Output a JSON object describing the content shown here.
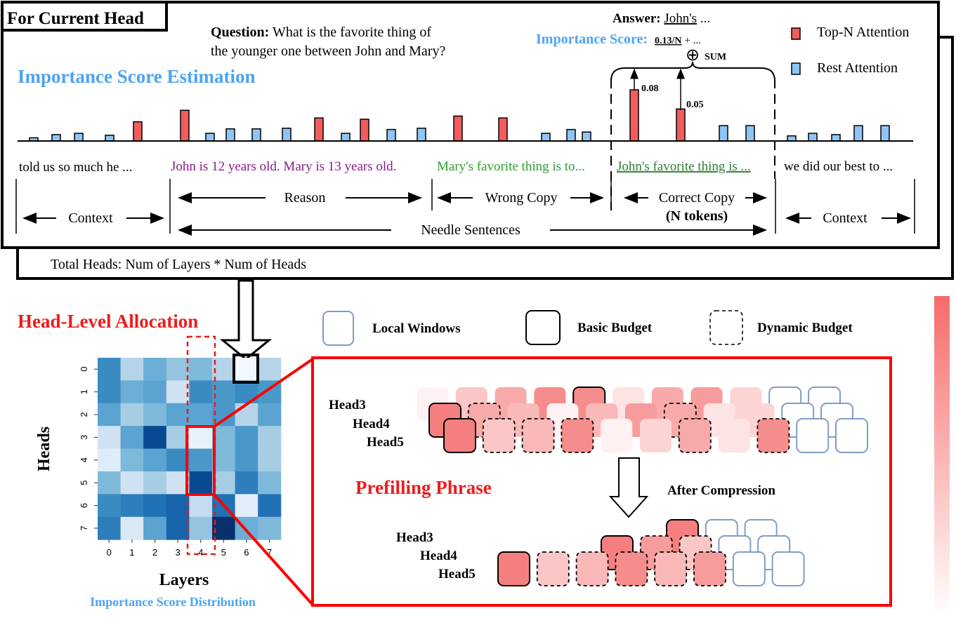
{
  "top_panel": {
    "tag": "For Current Head",
    "question_label": "Question:",
    "question_line1": "What is the favorite thing of",
    "question_line2": "the younger one between John and Mary?",
    "section_title": "Importance Score Estimation",
    "answer_label": "Answer:",
    "answer_token": "John's",
    "answer_rest": "...",
    "score_label": "Importance Score:",
    "score_value": "0.13/N",
    "score_rest": "+ ...",
    "sum_symbol": "⊕",
    "sum_label": "SUM",
    "value_labels": [
      "0.08",
      "0.05"
    ],
    "legend": [
      {
        "label": "Top-N Attention",
        "color": "#f25c5c"
      },
      {
        "label": "Rest Attention",
        "color": "#8ec5f5"
      }
    ],
    "attention_bars": [
      {
        "value": 0.005,
        "type": "rest"
      },
      {
        "value": 0.01,
        "type": "rest"
      },
      {
        "value": 0.012,
        "type": "rest"
      },
      {
        "value": 0.009,
        "type": "rest"
      },
      {
        "value": 0.03,
        "type": "top"
      },
      {
        "value": 0.048,
        "type": "top"
      },
      {
        "value": 0.012,
        "type": "rest"
      },
      {
        "value": 0.019,
        "type": "rest"
      },
      {
        "value": 0.019,
        "type": "rest"
      },
      {
        "value": 0.02,
        "type": "rest"
      },
      {
        "value": 0.036,
        "type": "top"
      },
      {
        "value": 0.012,
        "type": "rest"
      },
      {
        "value": 0.034,
        "type": "top"
      },
      {
        "value": 0.018,
        "type": "rest"
      },
      {
        "value": 0.02,
        "type": "rest"
      },
      {
        "value": 0.039,
        "type": "top"
      },
      {
        "value": 0.036,
        "type": "top"
      },
      {
        "value": 0.012,
        "type": "rest"
      },
      {
        "value": 0.018,
        "type": "rest"
      },
      {
        "value": 0.014,
        "type": "rest"
      },
      {
        "value": 0.08,
        "type": "top"
      },
      {
        "value": 0.05,
        "type": "top"
      },
      {
        "value": 0.024,
        "type": "rest"
      },
      {
        "value": 0.024,
        "type": "rest"
      },
      {
        "value": 0.008,
        "type": "rest"
      },
      {
        "value": 0.012,
        "type": "rest"
      },
      {
        "value": 0.01,
        "type": "rest"
      },
      {
        "value": 0.024,
        "type": "rest"
      },
      {
        "value": 0.024,
        "type": "rest"
      }
    ],
    "tokens": {
      "context_left": "told  us  so  much  he ...",
      "reason": "John is 12 years old. Mary is 13 years old.",
      "wrong_copy": "Mary's favorite thing is to...",
      "correct_copy": "John's favorite thing is ...",
      "context_right": "we did our best to ..."
    },
    "token_colors": {
      "reason": "#8b1a8b",
      "wrong_copy": "#2ca02c",
      "correct_copy": "#2e7d32"
    },
    "spans": {
      "context_left": "Context",
      "reason": "Reason",
      "wrong_copy": "Wrong  Copy",
      "correct_copy": "Correct Copy",
      "n_tokens": "(N tokens)",
      "needle": "Needle Sentences",
      "context_right": "Context"
    },
    "total_heads": "Total Heads: Num of Layers * Num of Heads"
  },
  "allocation": {
    "title": "Head-Level Allocation",
    "legend": {
      "local_windows": "Local Windows",
      "basic_budget": "Basic Budget",
      "dynamic_budget": "Dynamic Budget"
    },
    "heatmap": {
      "ylabel": "Heads",
      "xlabel": "Layers",
      "caption": "Importance Score Distribution",
      "row_labels": [
        "0",
        "1",
        "2",
        "3",
        "4",
        "5",
        "6",
        "7"
      ],
      "col_labels": [
        "0",
        "1",
        "2",
        "3",
        "4",
        "5",
        "6",
        "7"
      ],
      "colormap": "Blues",
      "values": [
        [
          0.65,
          0.3,
          0.5,
          0.4,
          0.45,
          0.3,
          0.02,
          0.3
        ],
        [
          0.65,
          0.5,
          0.55,
          0.2,
          0.65,
          0.6,
          0.65,
          0.6
        ],
        [
          0.55,
          0.35,
          0.45,
          0.55,
          0.55,
          0.6,
          0.3,
          0.55
        ],
        [
          0.2,
          0.55,
          0.9,
          0.35,
          0.08,
          0.45,
          0.6,
          0.35
        ],
        [
          0.12,
          0.45,
          0.55,
          0.65,
          0.6,
          0.45,
          0.6,
          0.35
        ],
        [
          0.45,
          0.2,
          0.35,
          0.2,
          0.9,
          0.35,
          0.7,
          0.45
        ],
        [
          0.65,
          0.7,
          0.75,
          0.8,
          0.25,
          0.75,
          0.1,
          0.75
        ],
        [
          0.7,
          0.15,
          0.55,
          0.8,
          0.4,
          1.0,
          0.5,
          0.45
        ]
      ]
    },
    "prefilling": {
      "title": "Prefilling Phrase",
      "after_label": "After  Compression",
      "head_labels": [
        "Head3",
        "Head4",
        "Head5"
      ],
      "before_rows": [
        [
          {
            "l": 0.1,
            "k": "none"
          },
          {
            "l": 0.4,
            "k": "none"
          },
          {
            "l": 0.6,
            "k": "none"
          },
          {
            "l": 0.8,
            "k": "none"
          },
          {
            "l": 0.8,
            "k": "basic"
          },
          {
            "l": 0.2,
            "k": "none"
          },
          {
            "l": 0.6,
            "k": "none"
          },
          {
            "l": 0.7,
            "k": "none"
          },
          {
            "l": 0.3,
            "k": "none"
          },
          {
            "l": 0,
            "k": "local"
          },
          {
            "l": 0,
            "k": "local"
          }
        ],
        [
          {
            "l": 0.9,
            "k": "basic"
          },
          {
            "l": 0.6,
            "k": "dynamic"
          },
          {
            "l": 0.5,
            "k": "none"
          },
          {
            "l": 0.1,
            "k": "none"
          },
          {
            "l": 0.5,
            "k": "none"
          },
          {
            "l": 0.7,
            "k": "none"
          },
          {
            "l": 0.6,
            "k": "dynamic"
          },
          {
            "l": 0.2,
            "k": "none"
          },
          {
            "l": 0.3,
            "k": "none"
          },
          {
            "l": 0,
            "k": "local"
          },
          {
            "l": 0,
            "k": "local"
          }
        ],
        [
          {
            "l": 0.9,
            "k": "basic"
          },
          {
            "l": 0.4,
            "k": "dynamic"
          },
          {
            "l": 0.5,
            "k": "dynamic"
          },
          {
            "l": 0.8,
            "k": "dynamic"
          },
          {
            "l": 0.1,
            "k": "none"
          },
          {
            "l": 0.3,
            "k": "none"
          },
          {
            "l": 0.6,
            "k": "dynamic"
          },
          {
            "l": 0.2,
            "k": "none"
          },
          {
            "l": 0.8,
            "k": "dynamic"
          },
          {
            "l": 0,
            "k": "local"
          },
          {
            "l": 0,
            "k": "local"
          }
        ]
      ],
      "after_rows": [
        [
          {
            "l": 0.9,
            "k": "basic"
          },
          {
            "l": 0,
            "k": "local"
          },
          {
            "l": 0,
            "k": "local"
          }
        ],
        [
          {
            "l": 0.9,
            "k": "basic"
          },
          {
            "l": 0.7,
            "k": "dynamic"
          },
          {
            "l": 0.4,
            "k": "dynamic"
          },
          {
            "l": 0,
            "k": "local"
          },
          {
            "l": 0,
            "k": "local"
          }
        ],
        [
          {
            "l": 0.9,
            "k": "basic"
          },
          {
            "l": 0.4,
            "k": "dynamic"
          },
          {
            "l": 0.5,
            "k": "dynamic"
          },
          {
            "l": 0.8,
            "k": "dynamic"
          },
          {
            "l": 0.5,
            "k": "dynamic"
          },
          {
            "l": 0.7,
            "k": "dynamic"
          },
          {
            "l": 0,
            "k": "local"
          },
          {
            "l": 0,
            "k": "local"
          }
        ]
      ]
    },
    "colors": {
      "accent_red": "#ee1c1c",
      "accent_blue": "#4da3f0",
      "local_window": "#7f9cc4",
      "block_red": "#f47171"
    }
  }
}
